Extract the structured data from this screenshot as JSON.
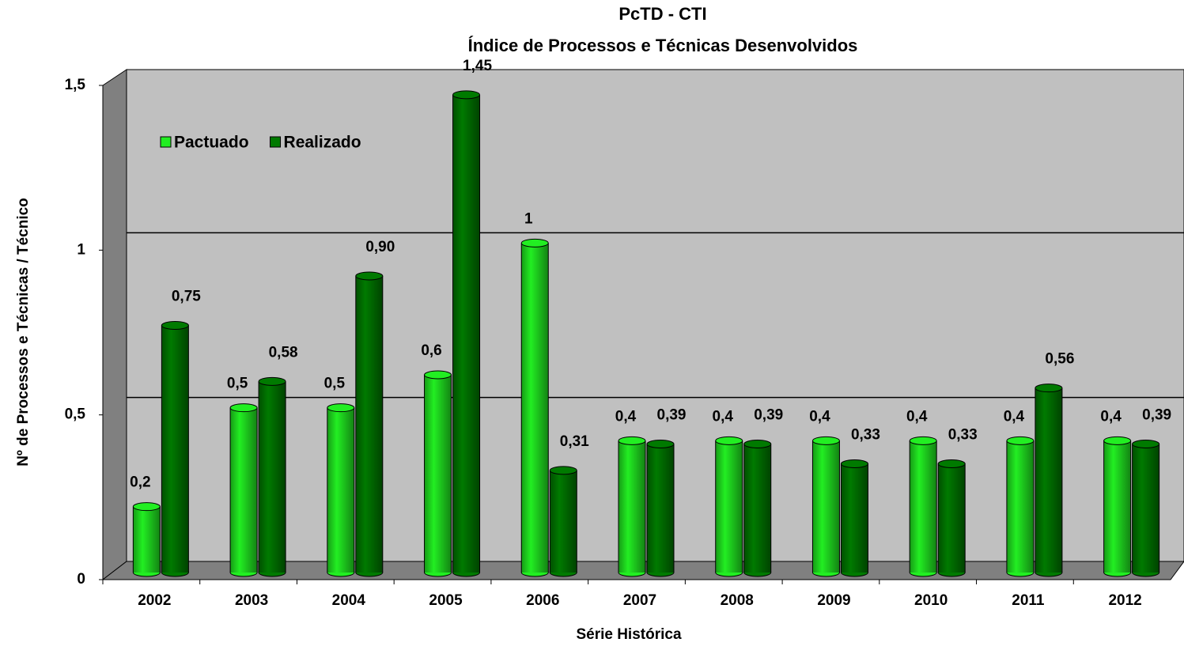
{
  "chart_data": {
    "type": "bar",
    "title": "PcTD - CTI",
    "subtitle": "Índice de Processos e Técnicas Desenvolvidos",
    "x_label": "Série Histórica",
    "y_label": "Nº de Processos e Técnicas / Técnico",
    "categories": [
      "2002",
      "2003",
      "2004",
      "2005",
      "2006",
      "2007",
      "2008",
      "2009",
      "2010",
      "2011",
      "2012"
    ],
    "series": [
      {
        "name": "Pactuado",
        "color": "#22ee22",
        "values": [
          0.2,
          0.5,
          0.5,
          0.6,
          1,
          0.4,
          0.4,
          0.4,
          0.4,
          0.4,
          0.4
        ],
        "value_labels": [
          "0,2",
          "0,5",
          "0,5",
          "0,6",
          "1",
          "0,4",
          "0,4",
          "0,4",
          "0,4",
          "0,4",
          "0,4"
        ]
      },
      {
        "name": "Realizado",
        "color": "#007a00",
        "values": [
          0.75,
          0.58,
          0.9,
          1.45,
          0.31,
          0.39,
          0.39,
          0.33,
          0.33,
          0.56,
          0.39
        ],
        "value_labels": [
          "0,75",
          "0,58",
          "0,90",
          "1,45",
          "0,31",
          "0,39",
          "0,39",
          "0,33",
          "0,33",
          "0,56",
          "0,39"
        ]
      }
    ],
    "ylim": [
      0,
      1.5
    ],
    "yticks": [
      0,
      {
        "value": 0.5,
        "label": "0,5"
      },
      1,
      {
        "value": 1.5,
        "label": "1,5"
      }
    ],
    "grid": true,
    "legend": "top-left"
  }
}
